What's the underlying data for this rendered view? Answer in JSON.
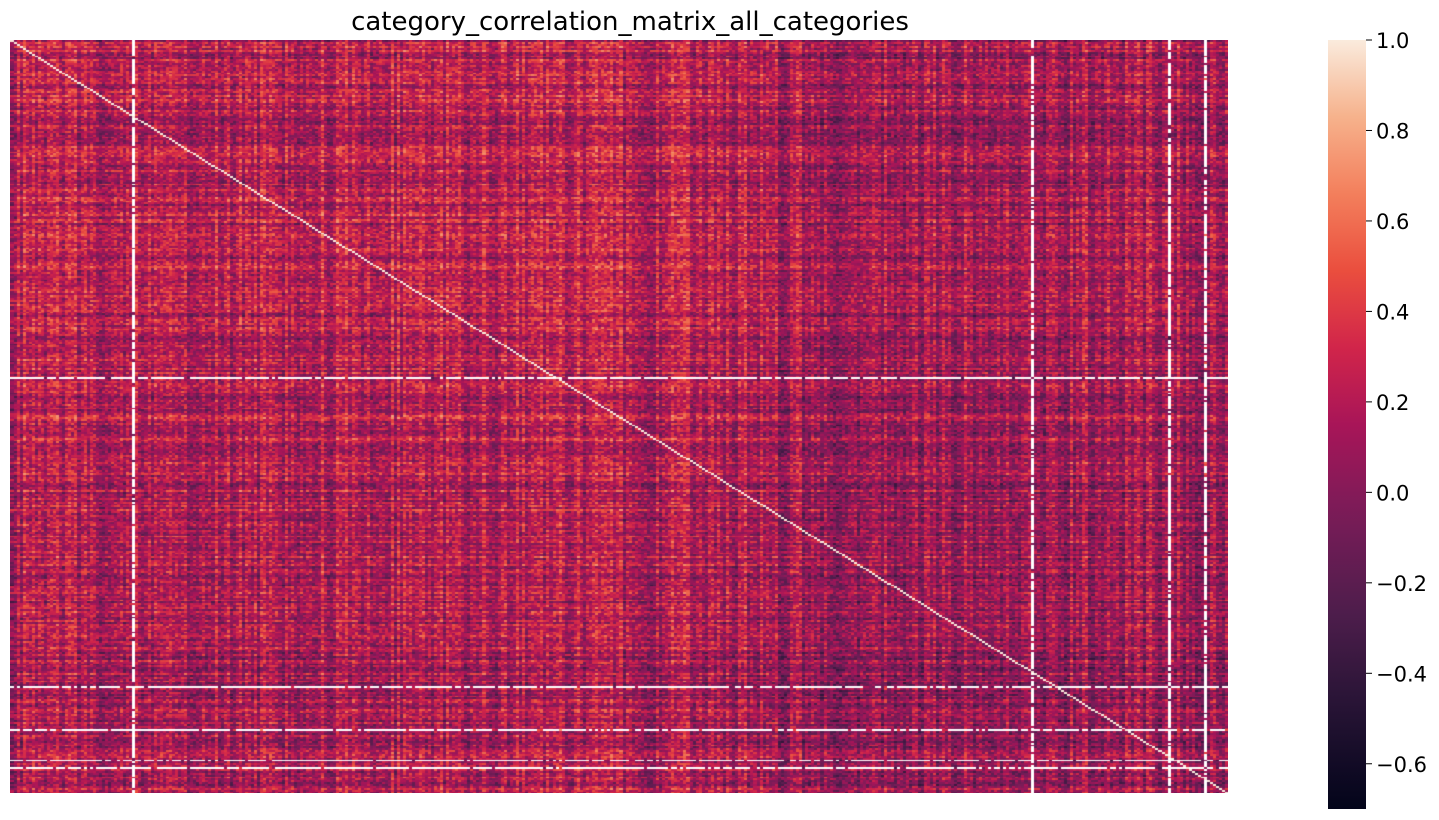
{
  "chart_data": {
    "type": "heatmap",
    "title": "category_correlation_matrix_all_categories",
    "xlabel": "",
    "ylabel": "",
    "x_tick_labels": [],
    "y_tick_labels": [],
    "colormap": "rocket",
    "colorbar": {
      "vmin": -0.7,
      "vmax": 1.0,
      "ticks": [
        1.0,
        0.8,
        0.6,
        0.4,
        0.2,
        0.0,
        -0.2,
        -0.4,
        -0.6
      ],
      "tick_labels": [
        "1.0",
        "0.8",
        "0.6",
        "0.4",
        "0.2",
        "0.0",
        "−0.2",
        "−0.4",
        "−0.6"
      ]
    },
    "matrix": {
      "shape": "square",
      "diagonal_value": 1.0,
      "typical_value_range": [
        -0.2,
        0.6
      ],
      "missing_values_color": "#ffffff"
    },
    "grid": false
  }
}
